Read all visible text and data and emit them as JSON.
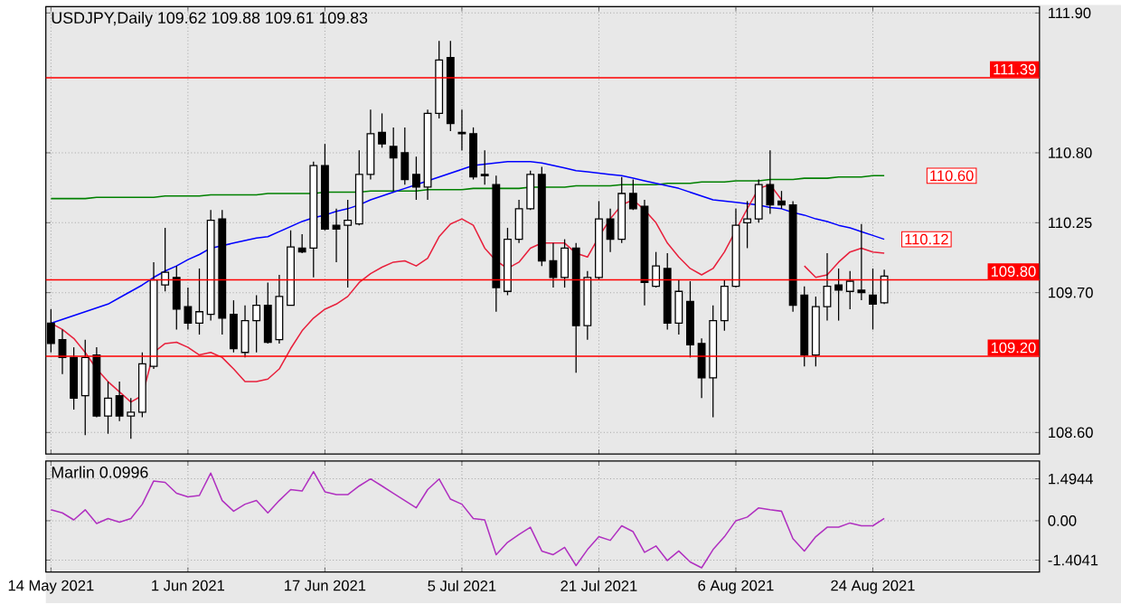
{
  "chart_data": [
    {
      "type": "candlestick",
      "title": "USDJPY,Daily  109.62 109.88 109.61 109.83",
      "categories": [
        null,
        null,
        null,
        null,
        null,
        null,
        null,
        null,
        null,
        null,
        null,
        null,
        null,
        null,
        null,
        null,
        null,
        null,
        null,
        null,
        null,
        null,
        null,
        null,
        null,
        null,
        null,
        null,
        null,
        null,
        null,
        null,
        null,
        null,
        null,
        null,
        null,
        null,
        null,
        null,
        null,
        null,
        null,
        null,
        null,
        null,
        null,
        null,
        null,
        null,
        null,
        null,
        null,
        null,
        null,
        null,
        null,
        null,
        null,
        null,
        null,
        null,
        null,
        null,
        null,
        null,
        null,
        null,
        null,
        null,
        null,
        null,
        null,
        null
      ],
      "ohlc": [
        [
          109.46,
          109.57,
          109.23,
          109.3
        ],
        [
          109.33,
          109.41,
          109.06,
          109.19
        ],
        [
          109.19,
          109.27,
          108.78,
          108.87
        ],
        [
          108.89,
          109.33,
          108.58,
          109.19
        ],
        [
          109.21,
          109.27,
          108.72,
          108.73
        ],
        [
          108.73,
          109.0,
          108.59,
          108.87
        ],
        [
          108.89,
          109.0,
          108.69,
          108.73
        ],
        [
          108.73,
          108.87,
          108.55,
          108.76
        ],
        [
          108.76,
          109.23,
          108.72,
          109.14
        ],
        [
          109.12,
          109.94,
          109.1,
          109.8
        ],
        [
          109.76,
          110.21,
          109.71,
          109.86
        ],
        [
          109.82,
          109.91,
          109.41,
          109.57
        ],
        [
          109.59,
          109.74,
          109.41,
          109.46
        ],
        [
          109.46,
          109.89,
          109.37,
          109.55
        ],
        [
          109.53,
          110.35,
          109.48,
          110.27
        ],
        [
          110.28,
          110.35,
          109.37,
          109.5
        ],
        [
          109.53,
          109.64,
          109.23,
          109.26
        ],
        [
          109.23,
          109.6,
          109.19,
          109.48
        ],
        [
          109.48,
          109.68,
          109.23,
          109.6
        ],
        [
          109.6,
          109.78,
          109.3,
          109.31
        ],
        [
          109.33,
          109.84,
          109.3,
          109.67
        ],
        [
          109.6,
          110.19,
          109.6,
          110.06
        ],
        [
          110.05,
          110.16,
          110.01,
          110.02
        ],
        [
          110.05,
          110.73,
          109.82,
          110.7
        ],
        [
          110.7,
          110.87,
          110.19,
          110.2
        ],
        [
          110.23,
          110.36,
          109.94,
          110.2
        ],
        [
          110.23,
          110.43,
          109.74,
          110.27
        ],
        [
          110.24,
          110.82,
          110.23,
          110.63
        ],
        [
          110.63,
          111.14,
          110.59,
          110.95
        ],
        [
          110.96,
          111.11,
          110.84,
          110.87
        ],
        [
          110.85,
          111.0,
          110.5,
          110.76
        ],
        [
          110.8,
          111.0,
          110.55,
          110.59
        ],
        [
          110.63,
          110.77,
          110.43,
          110.53
        ],
        [
          110.53,
          111.14,
          110.43,
          111.11
        ],
        [
          111.11,
          111.68,
          111.07,
          111.53
        ],
        [
          111.55,
          111.68,
          110.97,
          111.03
        ],
        [
          110.96,
          111.14,
          110.82,
          110.95
        ],
        [
          110.95,
          111.0,
          110.59,
          110.61
        ],
        [
          110.63,
          110.82,
          110.55,
          110.62
        ],
        [
          110.55,
          110.62,
          109.55,
          109.74
        ],
        [
          109.71,
          110.21,
          109.68,
          110.12
        ],
        [
          110.12,
          110.43,
          110.09,
          110.36
        ],
        [
          110.36,
          110.66,
          110.35,
          110.63
        ],
        [
          110.63,
          110.69,
          109.91,
          109.95
        ],
        [
          109.95,
          110.09,
          109.74,
          109.82
        ],
        [
          109.82,
          110.12,
          109.74,
          110.05
        ],
        [
          110.05,
          110.09,
          109.07,
          109.44
        ],
        [
          109.44,
          109.87,
          109.33,
          109.82
        ],
        [
          109.82,
          110.42,
          109.8,
          110.28
        ],
        [
          110.28,
          110.36,
          110.02,
          110.12
        ],
        [
          110.12,
          110.61,
          110.09,
          110.48
        ],
        [
          110.48,
          110.59,
          110.35,
          110.36
        ],
        [
          110.38,
          110.43,
          109.6,
          109.78
        ],
        [
          109.75,
          110.02,
          109.74,
          109.91
        ],
        [
          109.89,
          110.01,
          109.41,
          109.46
        ],
        [
          109.46,
          109.8,
          109.37,
          109.71
        ],
        [
          109.63,
          109.79,
          109.19,
          109.29
        ],
        [
          109.3,
          109.34,
          108.87,
          109.03
        ],
        [
          109.03,
          109.6,
          108.72,
          109.48
        ],
        [
          109.48,
          109.8,
          109.4,
          109.75
        ],
        [
          109.75,
          110.36,
          109.74,
          110.23
        ],
        [
          110.25,
          110.42,
          110.05,
          110.28
        ],
        [
          110.28,
          110.59,
          110.25,
          110.55
        ],
        [
          110.55,
          110.82,
          110.32,
          110.39
        ],
        [
          110.42,
          110.5,
          110.36,
          110.39
        ],
        [
          110.39,
          110.42,
          109.55,
          109.6
        ],
        [
          109.68,
          109.75,
          109.12,
          109.21
        ],
        [
          109.21,
          109.67,
          109.12,
          109.59
        ],
        [
          109.59,
          110.01,
          109.48,
          109.75
        ],
        [
          109.76,
          109.89,
          109.48,
          109.72
        ],
        [
          109.71,
          109.87,
          109.57,
          109.79
        ],
        [
          109.72,
          110.24,
          109.64,
          109.7
        ],
        [
          109.68,
          109.89,
          109.41,
          109.61
        ],
        [
          109.62,
          109.88,
          109.61,
          109.83
        ]
      ],
      "series": [
        {
          "type": "line",
          "color": "#008000",
          "values": [
            110.44,
            110.44,
            110.44,
            110.44,
            110.45,
            110.45,
            110.45,
            110.45,
            110.45,
            110.45,
            110.46,
            110.46,
            110.46,
            110.46,
            110.47,
            110.47,
            110.47,
            110.47,
            110.47,
            110.48,
            110.48,
            110.48,
            110.48,
            110.48,
            110.49,
            110.49,
            110.49,
            110.49,
            110.5,
            110.5,
            110.5,
            110.5,
            110.5,
            110.51,
            110.51,
            110.51,
            110.51,
            110.52,
            110.52,
            110.52,
            110.52,
            110.52,
            110.53,
            110.53,
            110.53,
            110.53,
            110.54,
            110.54,
            110.54,
            110.54,
            110.55,
            110.55,
            110.55,
            110.55,
            110.56,
            110.56,
            110.56,
            110.57,
            110.57,
            110.57,
            110.58,
            110.58,
            110.58,
            110.59,
            110.59,
            110.59,
            110.6,
            110.6,
            110.6,
            110.61,
            110.61,
            110.61,
            110.62,
            110.62
          ]
        },
        {
          "type": "line",
          "color": "#0000ff",
          "values": [
            109.46,
            109.49,
            109.52,
            109.55,
            109.58,
            109.61,
            109.66,
            109.71,
            109.76,
            109.82,
            109.87,
            109.91,
            109.96,
            110.0,
            110.05,
            110.07,
            110.09,
            110.11,
            110.13,
            110.14,
            110.18,
            110.22,
            110.26,
            110.29,
            110.31,
            110.34,
            110.36,
            110.39,
            110.43,
            110.46,
            110.49,
            110.52,
            110.55,
            110.58,
            110.61,
            110.64,
            110.67,
            110.7,
            110.71,
            110.72,
            110.73,
            110.73,
            110.73,
            110.72,
            110.7,
            110.68,
            110.66,
            110.65,
            110.64,
            110.63,
            110.62,
            110.6,
            110.58,
            110.56,
            110.54,
            110.52,
            110.49,
            110.46,
            110.43,
            110.42,
            110.41,
            110.4,
            110.39,
            110.37,
            110.36,
            110.33,
            110.31,
            110.28,
            110.26,
            110.23,
            110.21,
            110.18,
            110.15,
            110.12
          ]
        },
        {
          "type": "line",
          "color": "#e8203c",
          "values": [
            109.46,
            109.41,
            109.34,
            109.23,
            109.1,
            109.0,
            108.92,
            108.84,
            108.89,
            109.23,
            109.3,
            109.31,
            109.27,
            109.21,
            109.23,
            109.19,
            109.1,
            109.0,
            109.0,
            109.02,
            109.1,
            109.26,
            109.4,
            109.5,
            109.57,
            109.61,
            109.67,
            109.78,
            109.85,
            109.9,
            109.94,
            109.95,
            109.91,
            109.97,
            110.14,
            110.24,
            110.28,
            110.23,
            110.05,
            109.95,
            109.89,
            109.94,
            110.05,
            110.09,
            110.09,
            110.09,
            110.01,
            109.98,
            110.14,
            110.28,
            110.39,
            110.43,
            110.35,
            110.25,
            110.09,
            109.98,
            109.89,
            109.84,
            109.89,
            110.02,
            110.19,
            110.36,
            110.52,
            110.55,
            110.43,
            null,
            109.91,
            109.82,
            109.84,
            109.94,
            110.02,
            110.05,
            110.02,
            110.01
          ]
        }
      ],
      "ylim": [
        108.43,
        111.95
      ],
      "yticks": [
        {
          "value": 111.9,
          "label": "111.90"
        },
        {
          "value": 110.8,
          "label": "110.80"
        },
        110.25,
        {
          "value": 109.7,
          "label": "109.70"
        },
        {
          "value": 108.6,
          "label": "108.60"
        }
      ],
      "ref_lines": [
        {
          "axis": "y",
          "value": 111.39,
          "label": "111.39",
          "color": "#ff0000"
        },
        {
          "axis": "y",
          "value": 109.8,
          "label": "109.80",
          "color": "#ff0000"
        },
        {
          "axis": "y",
          "value": 109.2,
          "label": "109.20",
          "color": "#ff0000"
        }
      ],
      "annotations": [
        "110.60",
        "110.12"
      ],
      "grid": true,
      "tick_labels": "y"
    },
    {
      "type": "line",
      "title": "Marlin 0.0996",
      "categories": [
        "14 May 2021",
        null,
        null,
        null,
        null,
        null,
        null,
        null,
        null,
        null,
        null,
        null,
        "1 Jun 2021",
        null,
        null,
        null,
        null,
        null,
        null,
        null,
        null,
        null,
        null,
        null,
        "17 Jun 2021",
        null,
        null,
        null,
        null,
        null,
        null,
        null,
        null,
        null,
        null,
        null,
        "5 Jul 2021",
        null,
        null,
        null,
        null,
        null,
        null,
        null,
        null,
        null,
        null,
        null,
        "21 Jul 2021",
        null,
        null,
        null,
        null,
        null,
        null,
        null,
        null,
        null,
        null,
        null,
        "6 Aug 2021",
        null,
        null,
        null,
        null,
        null,
        null,
        null,
        null,
        null,
        null,
        null,
        "24 Aug 2021",
        null
      ],
      "series": [
        {
          "color": "#b030c0",
          "values": [
            0.39,
            0.28,
            0.03,
            0.39,
            -0.1,
            0.08,
            -0.05,
            0.08,
            0.59,
            1.42,
            1.37,
            0.98,
            0.85,
            0.9,
            1.7,
            0.72,
            0.34,
            0.59,
            0.72,
            0.28,
            0.72,
            1.11,
            1.06,
            1.75,
            1.03,
            0.93,
            0.93,
            1.24,
            1.49,
            1.24,
            0.98,
            0.72,
            0.46,
            1.11,
            1.49,
            0.77,
            0.59,
            0.08,
            0.03,
            -1.21,
            -0.77,
            -0.49,
            -0.23,
            -1.08,
            -1.21,
            -0.95,
            -1.6,
            -1.03,
            -0.57,
            -0.7,
            -0.18,
            -0.39,
            -1.13,
            -0.9,
            -1.42,
            -1.08,
            -1.47,
            -1.68,
            -1.03,
            -0.57,
            0.0,
            0.13,
            0.46,
            0.39,
            0.34,
            -0.64,
            -1.08,
            -0.57,
            -0.23,
            -0.23,
            -0.08,
            -0.18,
            -0.18,
            0.08
          ]
        }
      ],
      "ylim": [
        -1.83,
        2.13
      ],
      "yticks": [
        1.4944,
        {
          "value": 0,
          "label": "0.00"
        },
        -1.4041
      ],
      "grid": true
    }
  ]
}
